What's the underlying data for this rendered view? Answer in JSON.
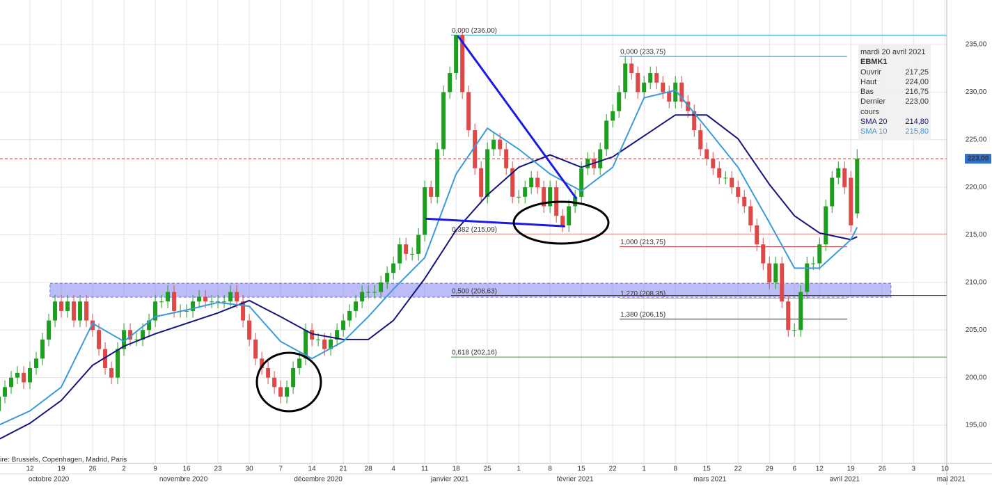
{
  "chart_data": {
    "type": "candlestick",
    "source_note": "ire: Brussels, Copenhagen, Madrid, Paris",
    "xlim": [
      0.22,
      151.3
    ],
    "ylim": [
      190.98,
      239.68
    ],
    "yticks": [
      {
        "value": 195,
        "label": "195,00"
      },
      {
        "value": 200,
        "label": "200,00"
      },
      {
        "value": 205,
        "label": "205,00"
      },
      {
        "value": 210,
        "label": "210,00"
      },
      {
        "value": 215,
        "label": "215,00"
      },
      {
        "value": 220,
        "label": "220,00"
      },
      {
        "value": 225,
        "label": "225,00"
      },
      {
        "value": 230,
        "label": "230,00"
      },
      {
        "value": 235,
        "label": "235,00"
      }
    ],
    "xticks": [
      {
        "value": 5,
        "label": "12"
      },
      {
        "value": 10,
        "label": "19"
      },
      {
        "value": 15,
        "label": "26"
      },
      {
        "value": 20,
        "label": "2"
      },
      {
        "value": 25,
        "label": "9"
      },
      {
        "value": 30,
        "label": "16"
      },
      {
        "value": 35,
        "label": "23"
      },
      {
        "value": 40,
        "label": "30"
      },
      {
        "value": 45,
        "label": "7"
      },
      {
        "value": 50,
        "label": "14"
      },
      {
        "value": 55,
        "label": "21"
      },
      {
        "value": 59,
        "label": "28"
      },
      {
        "value": 63,
        "label": "4"
      },
      {
        "value": 68,
        "label": "11"
      },
      {
        "value": 73,
        "label": "18"
      },
      {
        "value": 78,
        "label": "25"
      },
      {
        "value": 83,
        "label": "1"
      },
      {
        "value": 88,
        "label": "8"
      },
      {
        "value": 93,
        "label": "15"
      },
      {
        "value": 98,
        "label": "22"
      },
      {
        "value": 103,
        "label": "1"
      },
      {
        "value": 108,
        "label": "8"
      },
      {
        "value": 113,
        "label": "15"
      },
      {
        "value": 118,
        "label": "22"
      },
      {
        "value": 123,
        "label": "29"
      },
      {
        "value": 127,
        "label": "6"
      },
      {
        "value": 131,
        "label": "12"
      },
      {
        "value": 136,
        "label": "19"
      },
      {
        "value": 141,
        "label": "26"
      },
      {
        "value": 146,
        "label": "3"
      },
      {
        "value": 151,
        "label": "10"
      }
    ],
    "month_ticks": [
      {
        "value": 8,
        "label": "octobre 2020"
      },
      {
        "value": 29.5,
        "label": "novembre 2020"
      },
      {
        "value": 51,
        "label": "décembre 2020"
      },
      {
        "value": 72,
        "label": "janvier 2021"
      },
      {
        "value": 92,
        "label": "février 2021"
      },
      {
        "value": 113.5,
        "label": "mars 2021"
      },
      {
        "value": 135,
        "label": "avril 2021"
      },
      {
        "value": 152,
        "label": "mai 2021"
      }
    ],
    "grid": true,
    "up_color": "#1e9e1e",
    "down_color": "#e04848",
    "candles": {
      "open": [
        196.5,
        198,
        199,
        200,
        200.5,
        199.5,
        201,
        202,
        204,
        206,
        208,
        207,
        208,
        206,
        208,
        206,
        205,
        203,
        201,
        200,
        203,
        205,
        204,
        204,
        205,
        206,
        208,
        208,
        209,
        207,
        207,
        207,
        208,
        208.5,
        208,
        208,
        208,
        208,
        209,
        208,
        206,
        204,
        202,
        201,
        200,
        199,
        198,
        199,
        201,
        202,
        205,
        204,
        204,
        203,
        204,
        205,
        206,
        207,
        208,
        209,
        209,
        209,
        210,
        211,
        212,
        214,
        213,
        213,
        215,
        220,
        219,
        224,
        230,
        232,
        236,
        230,
        226,
        222,
        219,
        224,
        225,
        224,
        222,
        219,
        219,
        220,
        221,
        220,
        218,
        220,
        217,
        216,
        218,
        219,
        222,
        223,
        222,
        224,
        227,
        228,
        230,
        233,
        232,
        230,
        231,
        232,
        231,
        230,
        229,
        231,
        229,
        228,
        226,
        224,
        223,
        222,
        221,
        221,
        220,
        219,
        218,
        216,
        214,
        212,
        210,
        212,
        208,
        205,
        205,
        209,
        212,
        212,
        214,
        218,
        221,
        222,
        221,
        217.25
      ],
      "high": [
        198.7,
        199.7,
        200.7,
        201.2,
        201.2,
        201.7,
        202.7,
        204.7,
        206.7,
        208.7,
        208.7,
        208.7,
        208.7,
        208.7,
        208.7,
        206.7,
        205.7,
        203.7,
        201.7,
        203.7,
        205.7,
        205.7,
        204.7,
        205.7,
        206.7,
        208.7,
        208.7,
        209.7,
        209.7,
        207.7,
        207.7,
        208.7,
        209.2,
        209.2,
        208.7,
        208.7,
        208.7,
        209.7,
        209.7,
        208.7,
        206.7,
        204.7,
        202.7,
        201.7,
        200.7,
        199.7,
        199.7,
        201.7,
        202.7,
        205.7,
        205.7,
        204.7,
        204.7,
        204.7,
        205.7,
        206.7,
        207.7,
        208.7,
        209.7,
        209.7,
        209.7,
        210.7,
        211.7,
        212.7,
        214.7,
        214.7,
        213.7,
        215.7,
        220.7,
        220.7,
        224.7,
        230.7,
        232.7,
        236,
        236.7,
        230.7,
        226.7,
        222.7,
        224.7,
        225.7,
        225.7,
        224.7,
        222.7,
        219.7,
        220.7,
        221.7,
        221.7,
        220.7,
        220.7,
        220.7,
        217.7,
        218.7,
        219.7,
        222.7,
        223.7,
        223.7,
        224.7,
        227.7,
        228.7,
        230.7,
        233.7,
        233.7,
        232.7,
        231.7,
        232.7,
        232.7,
        231.7,
        230.7,
        231.7,
        231.7,
        229.7,
        228.7,
        226.7,
        224.7,
        223.7,
        222.7,
        221.7,
        221.7,
        220.7,
        219.7,
        218.7,
        216.7,
        214.7,
        212.7,
        212.7,
        212.7,
        208.7,
        205.7,
        209.7,
        212.7,
        212.7,
        214.7,
        218.7,
        221.7,
        222.7,
        222.7,
        221.7,
        224
      ],
      "low": [
        195.8,
        197.3,
        198.3,
        199.3,
        198.8,
        198.8,
        200.3,
        201.3,
        203.3,
        205.3,
        206.3,
        206.3,
        205.3,
        205.3,
        205.3,
        204.3,
        202.3,
        200.3,
        199.3,
        199.3,
        202.3,
        203.3,
        203.3,
        203.3,
        204.3,
        205.3,
        207.3,
        207.3,
        206.3,
        206.3,
        206.3,
        206.3,
        207.3,
        207.3,
        207.3,
        207.3,
        207.3,
        207.3,
        207.3,
        205.3,
        203.3,
        201.3,
        200.3,
        199.3,
        198.3,
        197.3,
        197.3,
        198.3,
        200.3,
        201.3,
        203.3,
        203.3,
        202.3,
        202.3,
        203.3,
        204.3,
        205.3,
        206.3,
        207.3,
        208.3,
        208.3,
        208.3,
        209.3,
        210.3,
        211.3,
        212.3,
        212.3,
        212.3,
        214.3,
        218.3,
        218.3,
        223.3,
        229.3,
        231.3,
        229.3,
        225.3,
        221.3,
        218.3,
        218.3,
        223.3,
        223.3,
        221.3,
        218.3,
        218.3,
        218.3,
        219.3,
        219.3,
        217.3,
        217.3,
        216.3,
        215.3,
        215.3,
        217.3,
        218.3,
        221.3,
        221.3,
        221.3,
        223.3,
        226.3,
        227.3,
        229.3,
        231.3,
        229.3,
        229.3,
        230.3,
        230.3,
        229.3,
        228.3,
        228.3,
        228.3,
        227.3,
        225.3,
        223.3,
        222.3,
        221.3,
        220.3,
        220.3,
        219.3,
        218.3,
        217.3,
        215.3,
        213.3,
        211.3,
        209.3,
        209.3,
        207.3,
        204.3,
        204.3,
        204.3,
        208.3,
        211.3,
        211.3,
        213.3,
        217.3,
        220.3,
        219.3,
        215.3,
        216.75
      ],
      "close": [
        198,
        199,
        200,
        200.5,
        199.5,
        201,
        202,
        204,
        206,
        208,
        207,
        208,
        206,
        208,
        206,
        205,
        203,
        201,
        200,
        203,
        205,
        204,
        204,
        205,
        206,
        208,
        208,
        209,
        207,
        207,
        207,
        208,
        208.5,
        208,
        208,
        208,
        208,
        209,
        208,
        206,
        204,
        202,
        201,
        200,
        199,
        198,
        199,
        201,
        202,
        205,
        204,
        204,
        203,
        204,
        205,
        206,
        207,
        208,
        209,
        209,
        209,
        210,
        211,
        212,
        214,
        213,
        213,
        215,
        220,
        219,
        224,
        230,
        232,
        236,
        230,
        226,
        222,
        219,
        224,
        225,
        224,
        222,
        219,
        219,
        220,
        221,
        220,
        218,
        220,
        217,
        216,
        218,
        219,
        222,
        223,
        222,
        224,
        227,
        228,
        230,
        233,
        232,
        230,
        231,
        232,
        231,
        230,
        229,
        231,
        229,
        228,
        226,
        224,
        223,
        222,
        221,
        221,
        220,
        219,
        218,
        216,
        214,
        212,
        210,
        212,
        208,
        205,
        205,
        209,
        212,
        212,
        214,
        218,
        221,
        222,
        220,
        216,
        223
      ]
    },
    "series": [
      {
        "name": "SMA 20",
        "color": "#14147a",
        "x": [
          0,
          5,
          10,
          15,
          20,
          25,
          30,
          35,
          40,
          45,
          50,
          55,
          59,
          63,
          68,
          73,
          78,
          83,
          88,
          93,
          98,
          103,
          108,
          113,
          118,
          123,
          127,
          131,
          136,
          137
        ],
        "values": [
          193.5,
          195.2,
          197.6,
          201.3,
          203.3,
          204.6,
          205.7,
          206.8,
          208.1,
          206.4,
          204.6,
          204,
          204,
          206,
          210.4,
          215.5,
          219.2,
          222.1,
          223.4,
          222.1,
          223.2,
          225.4,
          227.6,
          227.6,
          225.1,
          220.3,
          217,
          215.2,
          214.5,
          214.8
        ]
      },
      {
        "name": "SMA 10",
        "color": "#3b9ad9",
        "x": [
          0,
          5,
          10,
          15,
          20,
          25,
          30,
          35,
          40,
          45,
          50,
          55,
          59,
          63,
          68,
          73,
          78,
          83,
          88,
          93,
          98,
          103,
          108,
          113,
          118,
          123,
          127,
          131,
          136,
          137
        ],
        "values": [
          195,
          196.5,
          199,
          205.7,
          203.8,
          206.4,
          207.1,
          207.9,
          207.5,
          203.8,
          202,
          203.8,
          206.4,
          209.3,
          212.6,
          221.4,
          226.2,
          224,
          221.4,
          219.6,
          222.1,
          229.4,
          230.2,
          226.2,
          222.1,
          216.3,
          211.5,
          211.5,
          214.5,
          215.8
        ]
      }
    ],
    "zone": {
      "x": [
        8.2,
        142.4
      ],
      "y": [
        208.45,
        209.9
      ],
      "color": "#6a6af0"
    },
    "trendlines": [
      {
        "x": [
          73.3,
          92.2
        ],
        "y": [
          235.9,
          218.8
        ]
      },
      {
        "x": [
          68.1,
          90.4
        ],
        "y": [
          216.7,
          215.9
        ]
      }
    ],
    "levels": [
      {
        "value": 236,
        "label": "0,000 (236,00)",
        "color": "#2aa0b8",
        "x": [
          72.2,
          151.3
        ]
      },
      {
        "value": 233.75,
        "label": "0,000 (233,75)",
        "color": "#2a8fd0",
        "x": [
          99.1,
          135.4
        ]
      },
      {
        "value": 215.09,
        "label": "0,382 (215,09)",
        "color": "#d89090",
        "x": [
          72.2,
          151.3
        ]
      },
      {
        "value": 213.75,
        "label": "1,000 (213,75)",
        "color": "#c83030",
        "x": [
          99.1,
          135.4
        ]
      },
      {
        "value": 208.63,
        "label": "0,500 (208,63)",
        "color": "#222222",
        "x": [
          72.2,
          151.3
        ]
      },
      {
        "value": 208.35,
        "label": "1,270 (208,35)",
        "color": "#a0a0a0",
        "x": [
          99.1,
          135.4
        ]
      },
      {
        "value": 206.15,
        "label": "1,380 (206,15)",
        "color": "#222222",
        "x": [
          99.1,
          135.4
        ]
      },
      {
        "value": 202.16,
        "label": "0,618 (202,16)",
        "color": "#2ea02e",
        "x": [
          72.2,
          151.3
        ]
      }
    ],
    "last_price": {
      "value": 223,
      "label": "223,00",
      "color": "#d03030"
    },
    "tooltip": {
      "date": "mardi 20 avril 2021",
      "symbol": "EBMK1",
      "rows": [
        {
          "label": "Ouvrir",
          "value": "217,25"
        },
        {
          "label": "Haut",
          "value": "224,00"
        },
        {
          "label": "Bas",
          "value": "216,75"
        },
        {
          "label": "Dernier cours",
          "value": "223,00"
        }
      ]
    },
    "tooltip_sma": [
      {
        "label": "SMA 20",
        "value": "214,80"
      },
      {
        "label": "SMA 10",
        "value": "215,80"
      }
    ]
  }
}
